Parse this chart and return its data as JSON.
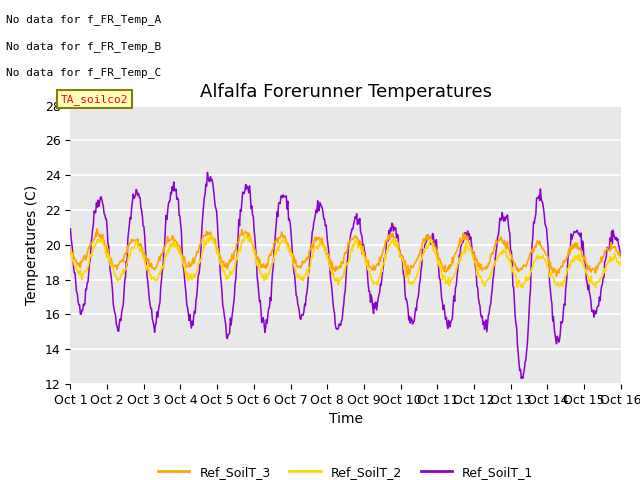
{
  "title": "Alfalfa Forerunner Temperatures",
  "xlabel": "Time",
  "ylabel": "Temperatures (C)",
  "ylim": [
    12,
    28
  ],
  "xlim": [
    0,
    15
  ],
  "xtick_labels": [
    "Oct 1",
    "Oct 2",
    "Oct 3",
    "Oct 4",
    "Oct 5",
    "Oct 6",
    "Oct 7",
    "Oct 8",
    "Oct 9",
    "Oct 10",
    "Oct 11",
    "Oct 12",
    "Oct 13",
    "Oct 14",
    "Oct 15",
    "Oct 16"
  ],
  "color_soilT1": "#8B00CC",
  "color_soilT2": "#FFD700",
  "color_soilT3": "#FFA500",
  "bg_color": "#E8E8E8",
  "annotation_lines": [
    "No data for f_FR_Temp_A",
    "No data for f_FR_Temp_B",
    "No data for f_FR_Temp_C"
  ],
  "annotation_box": "TA_soilco2",
  "legend_labels": [
    "Ref_SoilT_3",
    "Ref_SoilT_2",
    "Ref_SoilT_1"
  ],
  "title_fontsize": 13,
  "axis_fontsize": 10,
  "tick_fontsize": 9,
  "yticks": [
    12,
    14,
    16,
    18,
    20,
    22,
    24,
    26,
    28
  ],
  "grid_color": "#CCCCCC",
  "legend_fontsize": 9
}
